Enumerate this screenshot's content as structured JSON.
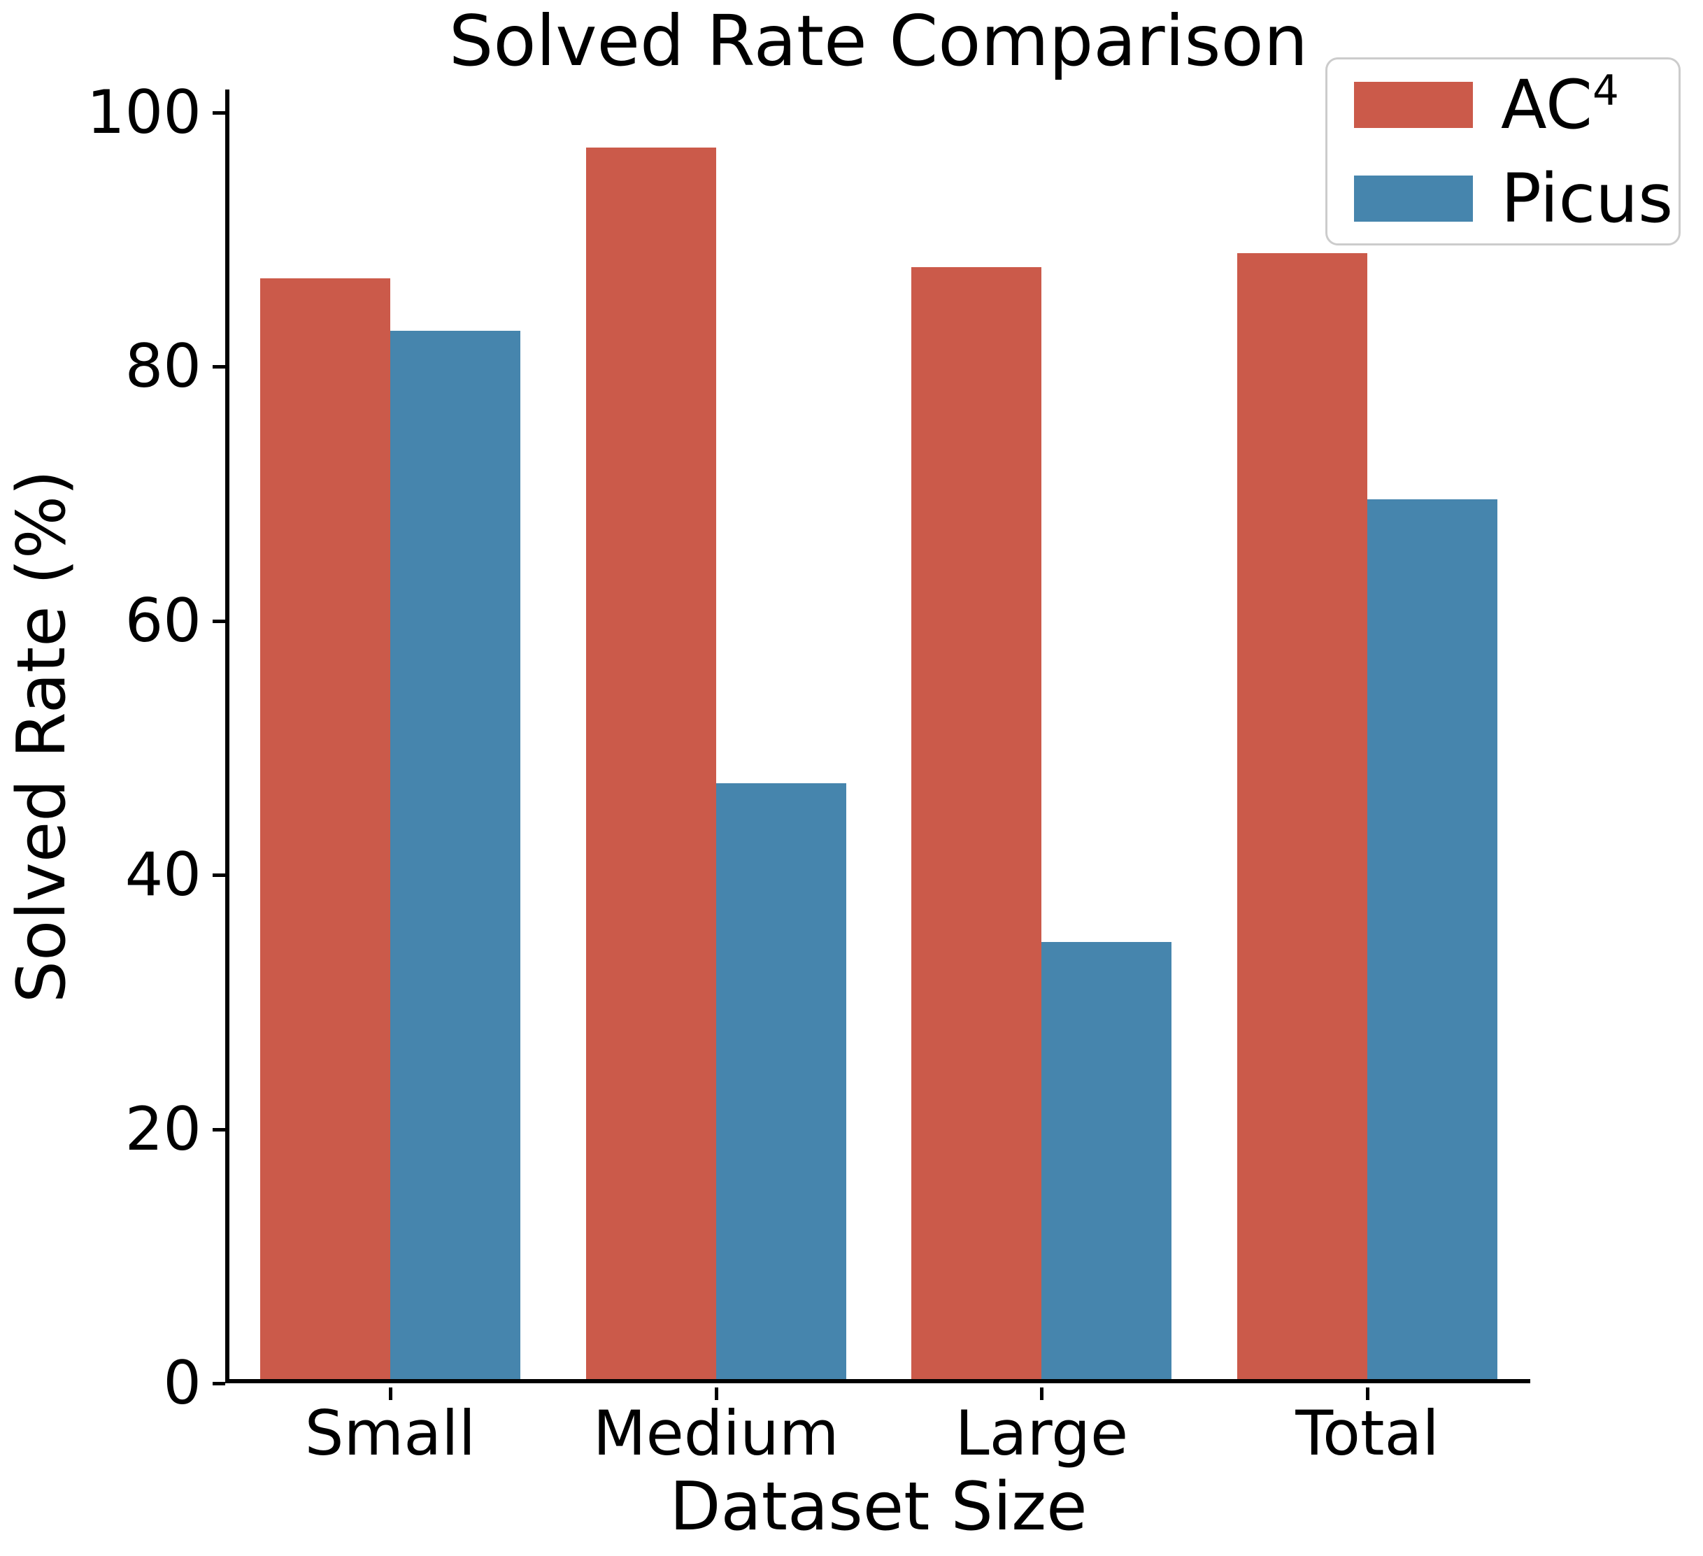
{
  "chart_data": {
    "type": "bar",
    "title": "Solved Rate Comparison",
    "xlabel": "Dataset Size",
    "ylabel": "Solved Rate (%)",
    "categories": [
      "Small",
      "Medium",
      "Large",
      "Total"
    ],
    "series": [
      {
        "name": "AC4",
        "legend_base": "AC",
        "legend_sup": "4",
        "color": "#CB5A4A",
        "values": [
          86.6,
          96.9,
          87.5,
          88.6
        ]
      },
      {
        "name": "Picus",
        "legend_base": "Picus",
        "legend_sup": "",
        "color": "#4685AD",
        "values": [
          82.5,
          46.9,
          34.4,
          69.2
        ]
      }
    ],
    "ylim": [
      0,
      101.8
    ],
    "yticks": [
      0,
      20,
      40,
      60,
      80,
      100
    ],
    "grid": false,
    "legend_position": "upper right",
    "bar_group_layout": "paired-adjacent"
  },
  "style": {
    "background": "#ffffff",
    "text_color": "#000000",
    "spine_color": "#000000",
    "legend_border_color": "#cccccc"
  }
}
